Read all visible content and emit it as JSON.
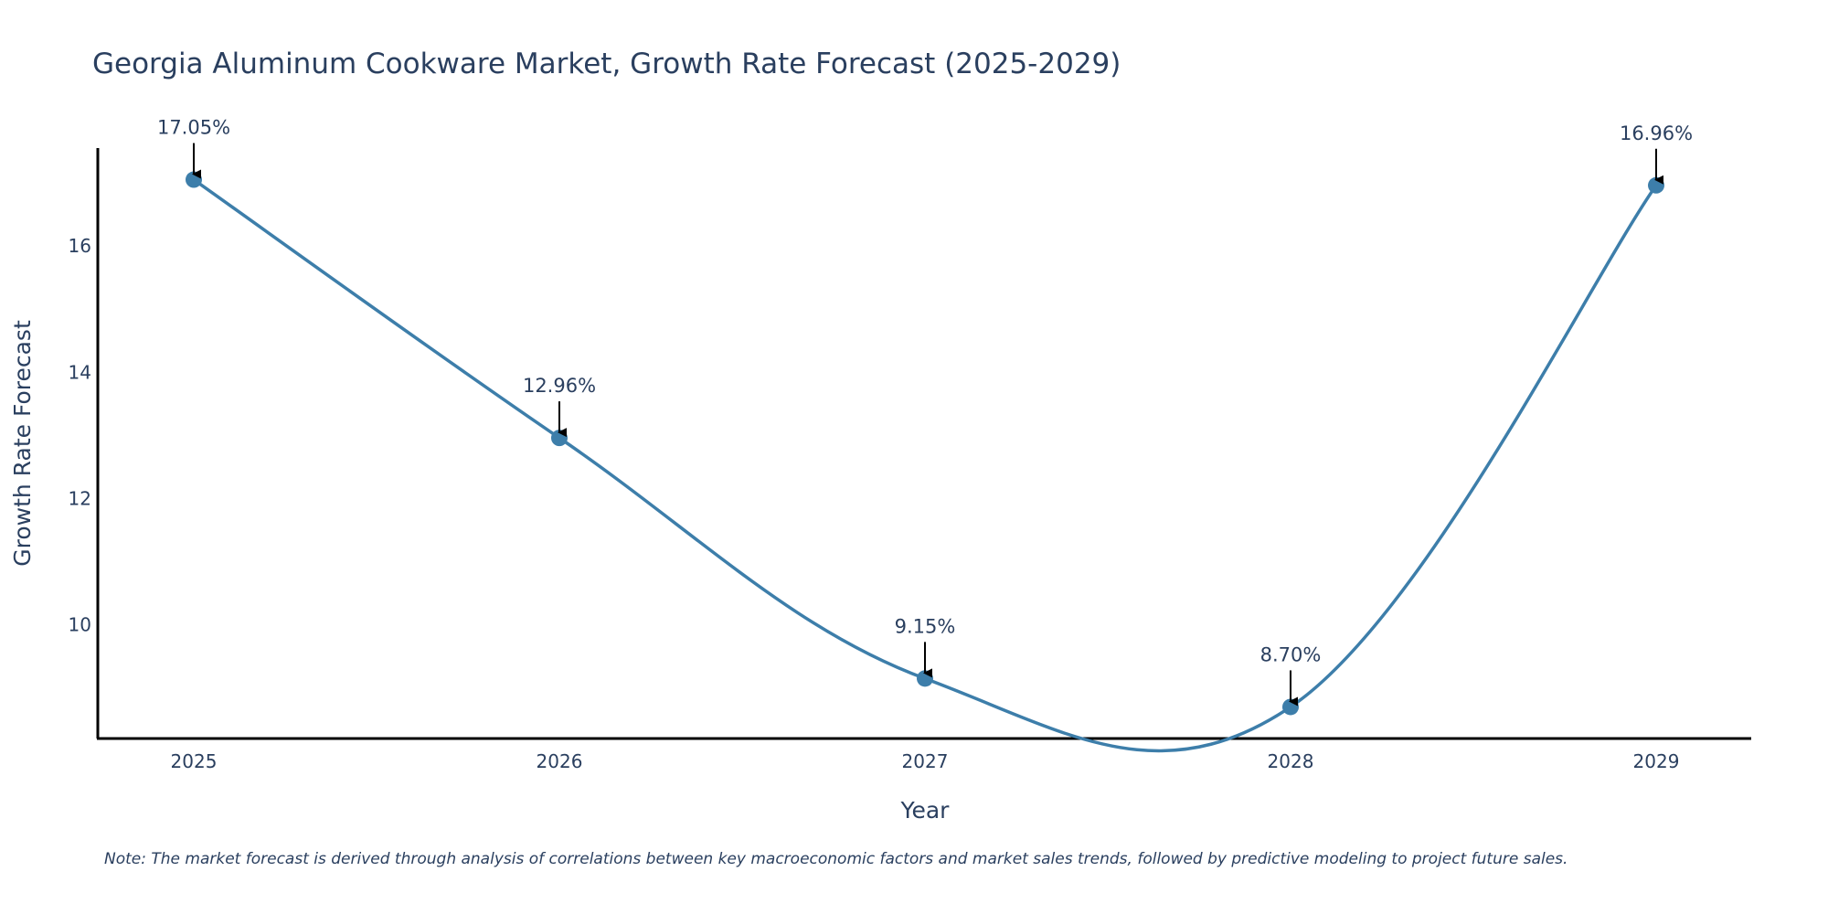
{
  "chart_data": {
    "type": "line",
    "title": "Georgia Aluminum Cookware Market, Growth Rate Forecast (2025-2029)",
    "xlabel": "Year",
    "ylabel": "Growth Rate Forecast",
    "categories": [
      "2025",
      "2026",
      "2027",
      "2028",
      "2029"
    ],
    "values": [
      17.05,
      12.96,
      9.15,
      8.7,
      16.96
    ],
    "data_labels": [
      "17.05%",
      "12.96%",
      "9.15%",
      "8.70%",
      "16.96%"
    ],
    "y_ticks": [
      10,
      12,
      14,
      16
    ],
    "y_tick_labels": [
      "10",
      "12",
      "14",
      "16"
    ],
    "ylim": [
      8.2,
      17.55
    ],
    "line_shape": "spline",
    "grid": false,
    "line_color": "#3d7eaa",
    "marker_color": "#3d7eaa",
    "arrow_color": "#000000",
    "note": "Note: The market forecast is derived through analysis of correlations between key macroeconomic factors and market sales trends, followed by predictive modeling to project future sales."
  }
}
